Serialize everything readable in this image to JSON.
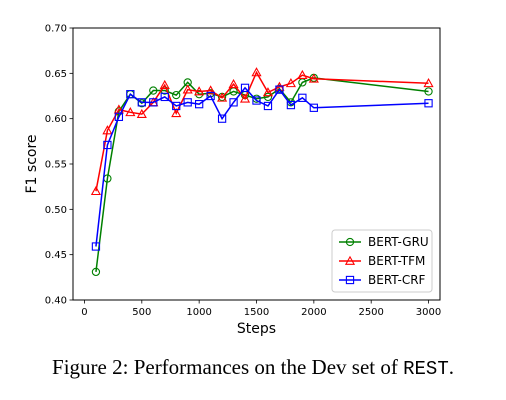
{
  "chart_data": {
    "type": "line",
    "xlabel": "Steps",
    "ylabel": "F1 score",
    "xlim": [
      -100,
      3100
    ],
    "ylim": [
      0.4,
      0.7
    ],
    "xticks": [
      0,
      500,
      1000,
      1500,
      2000,
      2500,
      3000
    ],
    "yticks": [
      0.4,
      0.45,
      0.5,
      0.55,
      0.6,
      0.65,
      0.7
    ],
    "x": [
      100,
      200,
      300,
      400,
      500,
      600,
      700,
      800,
      900,
      1000,
      1100,
      1200,
      1300,
      1400,
      1500,
      1600,
      1700,
      1800,
      1900,
      2000,
      3000
    ],
    "series": [
      {
        "name": "BERT-GRU",
        "color": "#008000",
        "marker": "circle",
        "values": [
          0.431,
          0.534,
          0.608,
          0.627,
          0.617,
          0.631,
          0.631,
          0.626,
          0.64,
          0.627,
          0.628,
          0.624,
          0.63,
          0.626,
          0.622,
          0.624,
          0.633,
          0.618,
          0.64,
          0.645,
          0.63
        ]
      },
      {
        "name": "BERT-TFM",
        "color": "#ff0000",
        "marker": "triangle",
        "values": [
          0.52,
          0.587,
          0.61,
          0.607,
          0.605,
          0.618,
          0.637,
          0.606,
          0.632,
          0.63,
          0.631,
          0.623,
          0.638,
          0.622,
          0.651,
          0.629,
          0.635,
          0.639,
          0.648,
          0.644,
          0.639
        ]
      },
      {
        "name": "BERT-CRF",
        "color": "#0000ff",
        "marker": "square",
        "values": [
          0.459,
          0.571,
          0.602,
          0.627,
          0.618,
          0.618,
          0.624,
          0.614,
          0.618,
          0.616,
          0.625,
          0.6,
          0.618,
          0.634,
          0.62,
          0.614,
          0.632,
          0.615,
          0.623,
          0.612,
          0.617
        ]
      }
    ],
    "legend_position": "lower-right",
    "grid": false
  },
  "caption": {
    "prefix": "Figure 2: Performances on the Dev set of ",
    "dataset": "REST",
    "suffix": "."
  }
}
